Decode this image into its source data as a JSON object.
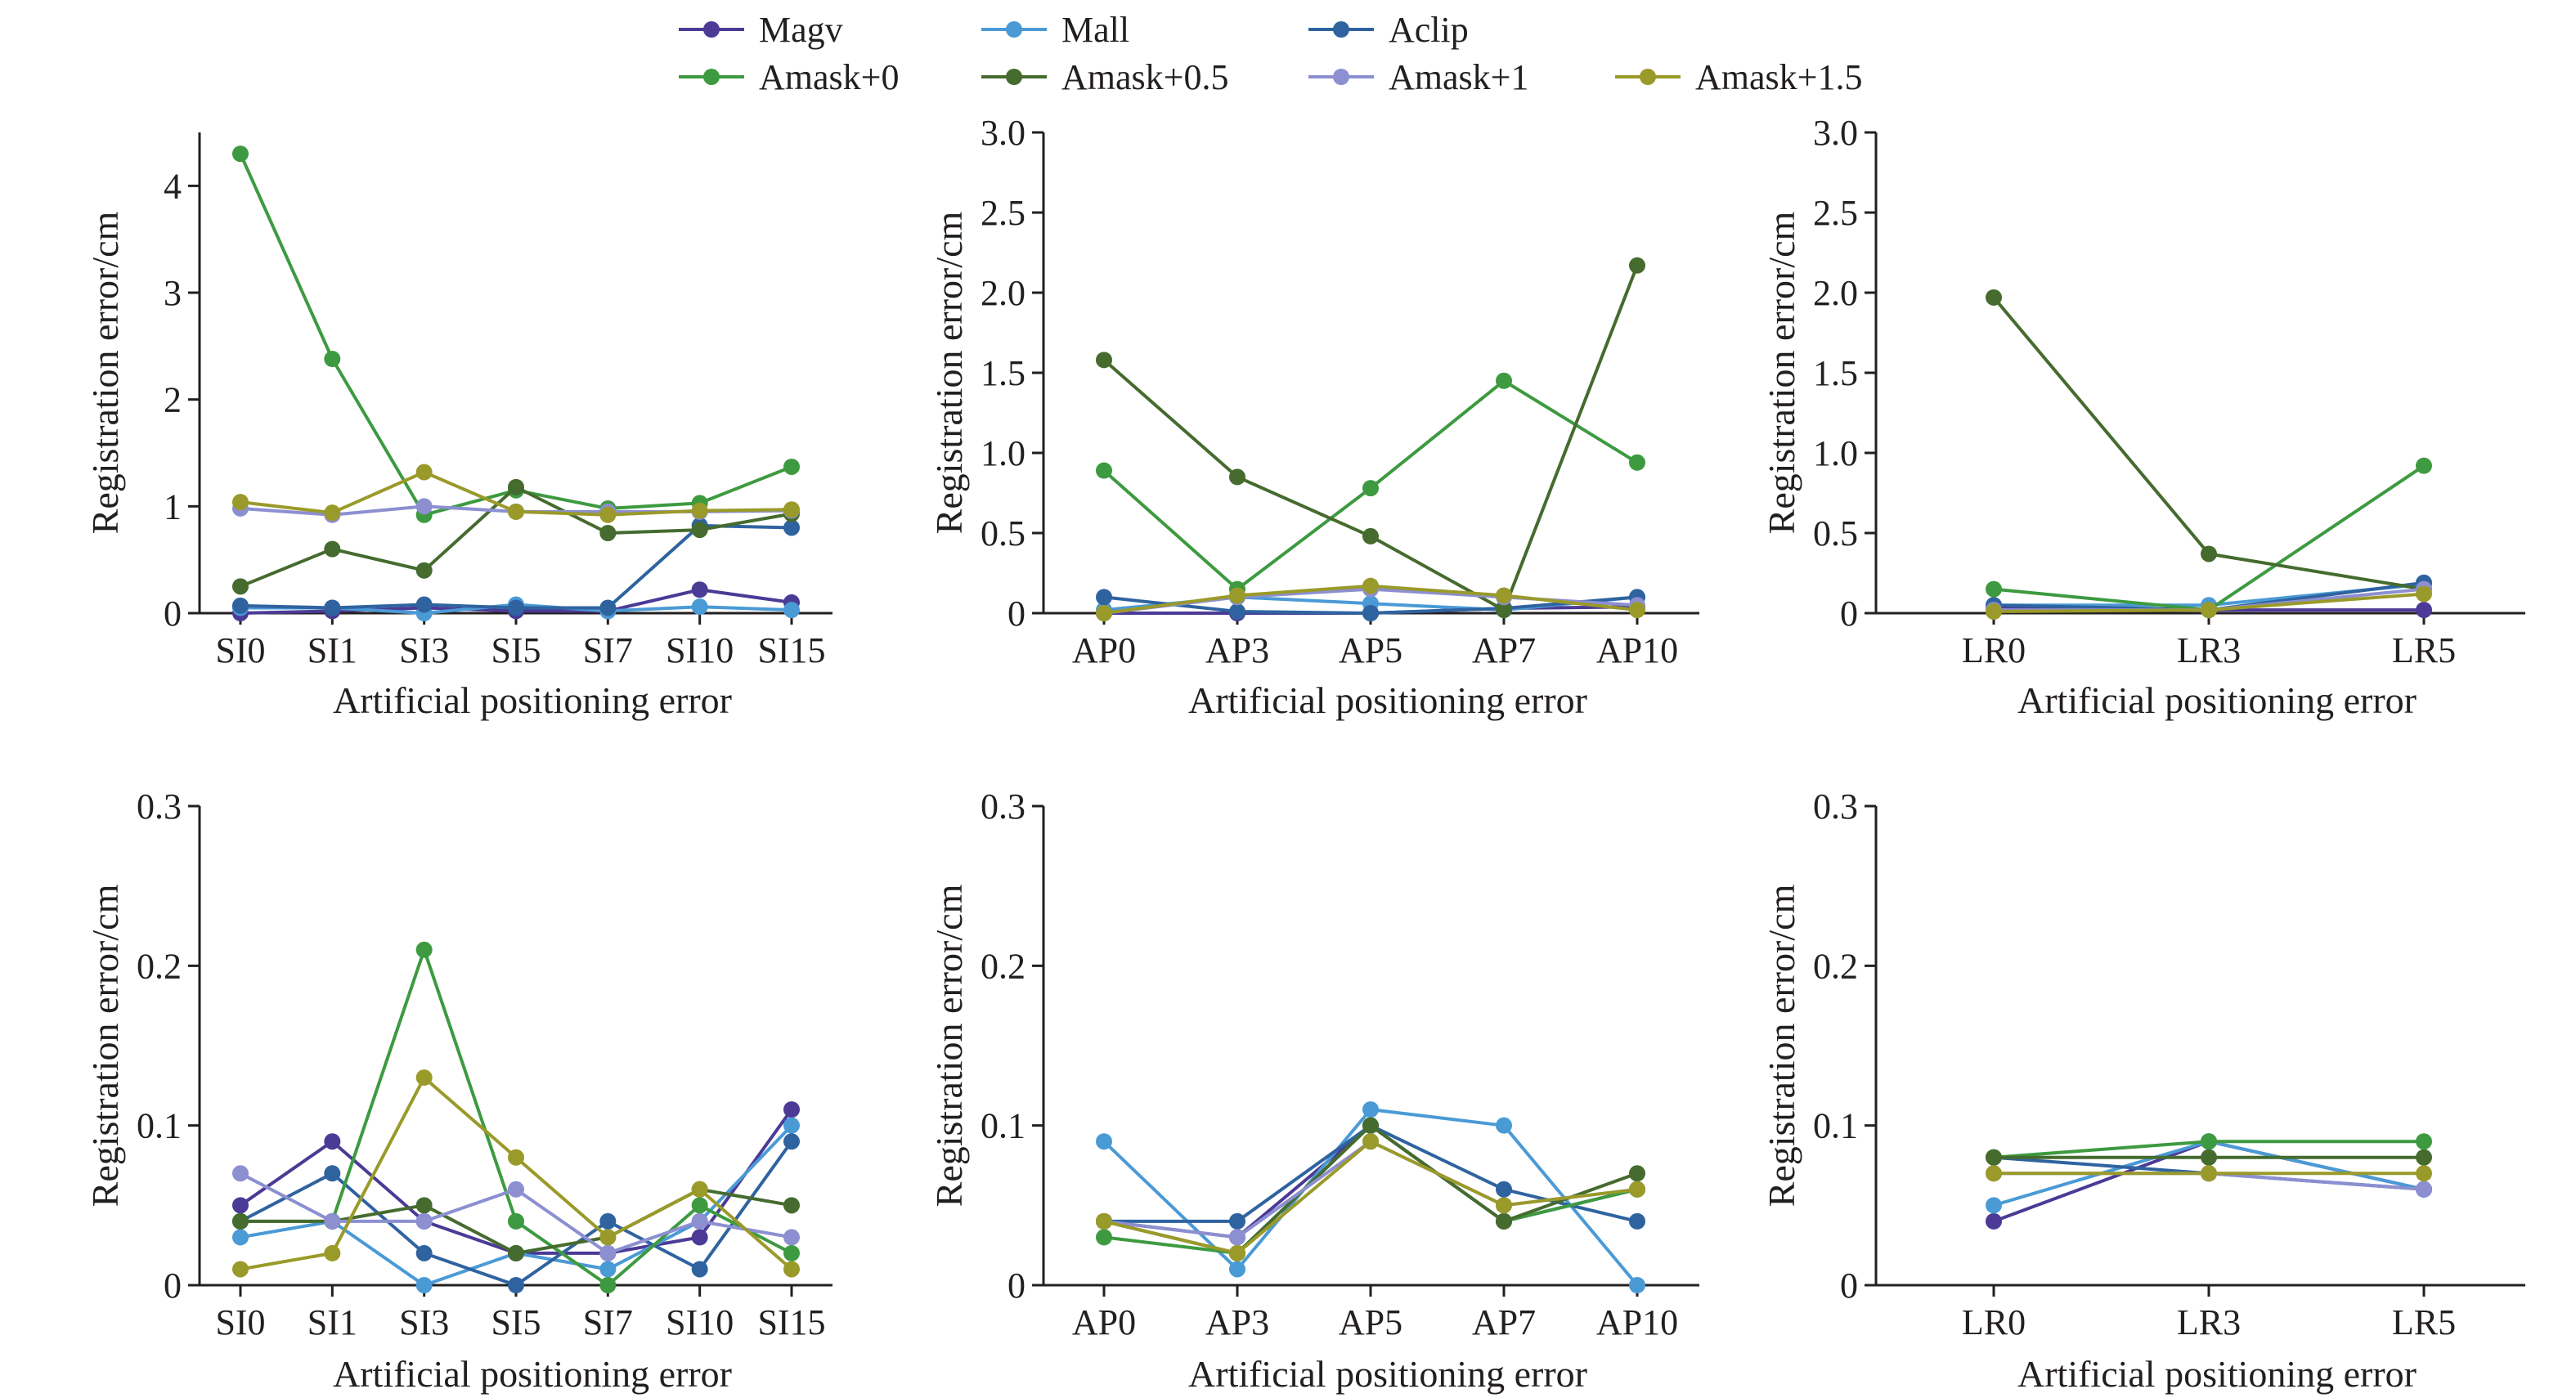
{
  "legend": [
    {
      "name": "Magv",
      "color": "#4b3a96"
    },
    {
      "name": "Mall",
      "color": "#4a9ad6"
    },
    {
      "name": "Aclip",
      "color": "#2f63a0"
    },
    {
      "name": "Amask+0",
      "color": "#3d9a40"
    },
    {
      "name": "Amask+0.5",
      "color": "#456b2e"
    },
    {
      "name": "Amask+1",
      "color": "#8c8fd0"
    },
    {
      "name": "Amask+1.5",
      "color": "#9a9a2a"
    }
  ],
  "chart_data": [
    {
      "type": "line",
      "panel": "top-left",
      "categories": [
        "SI0",
        "SI1",
        "SI3",
        "SI5",
        "SI7",
        "SI10",
        "SI15"
      ],
      "xlabel": "Artificial positioning error",
      "ylabel": "Registration error/cm",
      "ylim": [
        0,
        4.5
      ],
      "yticks": [
        0,
        1,
        2,
        3,
        4
      ],
      "ytick_labels": [
        "0",
        "1",
        "2",
        "3",
        "4"
      ],
      "series": [
        {
          "name": "Magv",
          "values": [
            0.0,
            0.02,
            0.05,
            0.02,
            0.02,
            0.22,
            0.1
          ]
        },
        {
          "name": "Mall",
          "values": [
            0.05,
            0.05,
            0.0,
            0.08,
            0.02,
            0.06,
            0.03
          ]
        },
        {
          "name": "Aclip",
          "values": [
            0.07,
            0.05,
            0.08,
            0.05,
            0.05,
            0.82,
            0.8
          ]
        },
        {
          "name": "Amask+0",
          "values": [
            4.3,
            2.38,
            0.92,
            1.15,
            0.98,
            1.03,
            1.37
          ]
        },
        {
          "name": "Amask+0.5",
          "values": [
            0.25,
            0.6,
            0.4,
            1.18,
            0.75,
            0.78,
            0.93
          ]
        },
        {
          "name": "Amask+1",
          "values": [
            0.98,
            0.92,
            1.0,
            0.95,
            0.95,
            0.95,
            0.96
          ]
        },
        {
          "name": "Amask+1.5",
          "values": [
            1.04,
            0.94,
            1.32,
            0.95,
            0.92,
            0.96,
            0.97
          ]
        }
      ]
    },
    {
      "type": "line",
      "panel": "top-middle",
      "categories": [
        "AP0",
        "AP3",
        "AP5",
        "AP7",
        "AP10"
      ],
      "xlabel": "Artificial positioning error",
      "ylabel": "Registration error/cm",
      "ylim": [
        0,
        3.0
      ],
      "yticks": [
        0,
        0.5,
        1.0,
        1.5,
        2.0,
        2.5,
        3.0
      ],
      "ytick_labels": [
        "0",
        "0.5",
        "1.0",
        "1.5",
        "2.0",
        "2.5",
        "3.0"
      ],
      "series": [
        {
          "name": "Magv",
          "values": [
            0.0,
            0.0,
            0.0,
            0.03,
            0.04
          ]
        },
        {
          "name": "Mall",
          "values": [
            0.02,
            0.1,
            0.06,
            0.02,
            0.1
          ]
        },
        {
          "name": "Aclip",
          "values": [
            0.1,
            0.01,
            0.0,
            0.03,
            0.1
          ]
        },
        {
          "name": "Amask+0",
          "values": [
            0.89,
            0.15,
            0.78,
            1.45,
            0.94
          ]
        },
        {
          "name": "Amask+0.5",
          "values": [
            1.58,
            0.85,
            0.48,
            0.02,
            2.17
          ]
        },
        {
          "name": "Amask+1",
          "values": [
            0.0,
            0.1,
            0.15,
            0.1,
            0.05
          ]
        },
        {
          "name": "Amask+1.5",
          "values": [
            0.0,
            0.11,
            0.17,
            0.11,
            0.02
          ]
        }
      ]
    },
    {
      "type": "line",
      "panel": "top-right",
      "categories": [
        "LR0",
        "LR3",
        "LR5"
      ],
      "xlabel": "Artificial positioning error",
      "ylabel": "Registration error/cm",
      "ylim": [
        0,
        3.0
      ],
      "yticks": [
        0,
        0.5,
        1.0,
        1.5,
        2.0,
        2.5,
        3.0
      ],
      "ytick_labels": [
        "0",
        "0.5",
        "1.0",
        "1.5",
        "2.0",
        "2.5",
        "3.0"
      ],
      "series": [
        {
          "name": "Magv",
          "values": [
            0.04,
            0.02,
            0.02
          ]
        },
        {
          "name": "Mall",
          "values": [
            0.05,
            0.05,
            0.18
          ]
        },
        {
          "name": "Aclip",
          "values": [
            0.05,
            0.02,
            0.19
          ]
        },
        {
          "name": "Amask+0",
          "values": [
            0.15,
            0.02,
            0.92
          ]
        },
        {
          "name": "Amask+0.5",
          "values": [
            1.97,
            0.37,
            0.15
          ]
        },
        {
          "name": "Amask+1",
          "values": [
            0.02,
            0.02,
            0.15
          ]
        },
        {
          "name": "Amask+1.5",
          "values": [
            0.01,
            0.02,
            0.12
          ]
        }
      ]
    },
    {
      "type": "line",
      "panel": "bottom-left",
      "categories": [
        "SI0",
        "SI1",
        "SI3",
        "SI5",
        "SI7",
        "SI10",
        "SI15"
      ],
      "xlabel": "Artificial positioning error",
      "ylabel": "Registration error/cm",
      "ylim": [
        0,
        0.3
      ],
      "yticks": [
        0,
        0.1,
        0.2,
        0.3
      ],
      "ytick_labels": [
        "0",
        "0.1",
        "0.2",
        "0.3"
      ],
      "series": [
        {
          "name": "Magv",
          "values": [
            0.05,
            0.09,
            0.04,
            0.02,
            0.02,
            0.03,
            0.11
          ]
        },
        {
          "name": "Mall",
          "values": [
            0.03,
            0.04,
            0.0,
            0.02,
            0.01,
            0.04,
            0.1
          ]
        },
        {
          "name": "Aclip",
          "values": [
            0.04,
            0.07,
            0.02,
            0.0,
            0.04,
            0.01,
            0.09
          ]
        },
        {
          "name": "Amask+0",
          "values": [
            0.04,
            0.04,
            0.21,
            0.04,
            0.0,
            0.05,
            0.02
          ]
        },
        {
          "name": "Amask+0.5",
          "values": [
            0.04,
            0.04,
            0.05,
            0.02,
            0.03,
            0.06,
            0.05
          ]
        },
        {
          "name": "Amask+1",
          "values": [
            0.07,
            0.04,
            0.04,
            0.06,
            0.02,
            0.04,
            0.03
          ]
        },
        {
          "name": "Amask+1.5",
          "values": [
            0.01,
            0.02,
            0.13,
            0.08,
            0.03,
            0.06,
            0.01
          ]
        }
      ]
    },
    {
      "type": "line",
      "panel": "bottom-middle",
      "categories": [
        "AP0",
        "AP3",
        "AP5",
        "AP7",
        "AP10"
      ],
      "xlabel": "Artificial positioning error",
      "ylabel": "Registration error/cm",
      "ylim": [
        0,
        0.3
      ],
      "yticks": [
        0,
        0.1,
        0.2,
        0.3
      ],
      "ytick_labels": [
        "0",
        "0.1",
        "0.2",
        "0.3"
      ],
      "series": [
        {
          "name": "Magv",
          "values": [
            0.04,
            0.03,
            0.1,
            0.04,
            0.06
          ]
        },
        {
          "name": "Mall",
          "values": [
            0.09,
            0.01,
            0.11,
            0.1,
            0.0
          ]
        },
        {
          "name": "Aclip",
          "values": [
            0.04,
            0.04,
            0.1,
            0.06,
            0.04
          ]
        },
        {
          "name": "Amask+0",
          "values": [
            0.03,
            0.02,
            0.1,
            0.04,
            0.06
          ]
        },
        {
          "name": "Amask+0.5",
          "values": [
            0.04,
            0.02,
            0.1,
            0.04,
            0.07
          ]
        },
        {
          "name": "Amask+1",
          "values": [
            0.04,
            0.03,
            0.09,
            0.05,
            0.06
          ]
        },
        {
          "name": "Amask+1.5",
          "values": [
            0.04,
            0.02,
            0.09,
            0.05,
            0.06
          ]
        }
      ]
    },
    {
      "type": "line",
      "panel": "bottom-right",
      "categories": [
        "LR0",
        "LR3",
        "LR5"
      ],
      "xlabel": "Artificial positioning error",
      "ylabel": "Registration error/cm",
      "ylim": [
        0,
        0.3
      ],
      "yticks": [
        0,
        0.1,
        0.2,
        0.3
      ],
      "ytick_labels": [
        "0",
        "0.1",
        "0.2",
        "0.3"
      ],
      "series": [
        {
          "name": "Magv",
          "values": [
            0.04,
            0.09,
            0.06
          ]
        },
        {
          "name": "Mall",
          "values": [
            0.05,
            0.09,
            0.06
          ]
        },
        {
          "name": "Aclip",
          "values": [
            0.08,
            0.07,
            0.06
          ]
        },
        {
          "name": "Amask+0",
          "values": [
            0.08,
            0.09,
            0.09
          ]
        },
        {
          "name": "Amask+0.5",
          "values": [
            0.08,
            0.08,
            0.08
          ]
        },
        {
          "name": "Amask+1",
          "values": [
            0.07,
            0.07,
            0.06
          ]
        },
        {
          "name": "Amask+1.5",
          "values": [
            0.07,
            0.07,
            0.07
          ]
        }
      ]
    }
  ]
}
